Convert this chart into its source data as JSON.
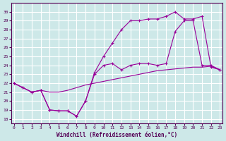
{
  "xlabel": "Windchill (Refroidissement éolien,°C)",
  "bg_color": "#cde8e8",
  "grid_color": "#b0d8d8",
  "line_color": "#990099",
  "x_ticks": [
    0,
    1,
    2,
    3,
    4,
    5,
    6,
    7,
    8,
    9,
    10,
    11,
    12,
    13,
    14,
    15,
    16,
    17,
    18,
    19,
    20,
    21,
    22,
    23
  ],
  "y_ticks": [
    18,
    19,
    20,
    21,
    22,
    23,
    24,
    25,
    26,
    27,
    28,
    29,
    30
  ],
  "ylim": [
    17.5,
    31.0
  ],
  "xlim": [
    -0.3,
    23.3
  ],
  "line1_x": [
    0,
    1,
    2,
    3,
    4,
    5,
    6,
    7,
    8,
    9,
    10,
    11,
    12,
    13,
    14,
    15,
    16,
    17,
    18,
    19,
    20,
    21,
    22,
    23
  ],
  "line1_y": [
    22.0,
    21.5,
    21.0,
    21.2,
    19.0,
    18.9,
    18.9,
    18.3,
    20.0,
    23.2,
    25.0,
    26.5,
    28.0,
    29.0,
    29.0,
    29.2,
    29.2,
    29.5,
    30.0,
    29.2,
    29.2,
    29.5,
    23.8,
    23.5
  ],
  "line2_x": [
    0,
    1,
    2,
    3,
    4,
    5,
    6,
    7,
    8,
    9,
    10,
    11,
    12,
    13,
    14,
    15,
    16,
    17,
    18,
    19,
    20,
    21,
    22,
    23
  ],
  "line2_y": [
    22.0,
    21.5,
    21.0,
    21.2,
    21.0,
    21.0,
    21.2,
    21.5,
    21.8,
    22.0,
    22.2,
    22.4,
    22.6,
    22.8,
    23.0,
    23.2,
    23.4,
    23.5,
    23.6,
    23.7,
    23.8,
    23.8,
    23.9,
    23.5
  ],
  "line3_x": [
    0,
    1,
    2,
    3,
    4,
    5,
    6,
    7,
    8,
    9,
    10,
    11,
    12,
    13,
    14,
    15,
    16,
    17,
    18,
    19,
    20,
    21,
    22,
    23
  ],
  "line3_y": [
    22.0,
    21.5,
    21.0,
    21.2,
    19.0,
    18.9,
    18.9,
    18.3,
    20.0,
    23.0,
    24.0,
    24.2,
    23.5,
    24.0,
    24.2,
    24.2,
    24.0,
    24.2,
    27.8,
    29.0,
    29.0,
    24.0,
    24.0,
    23.5
  ]
}
